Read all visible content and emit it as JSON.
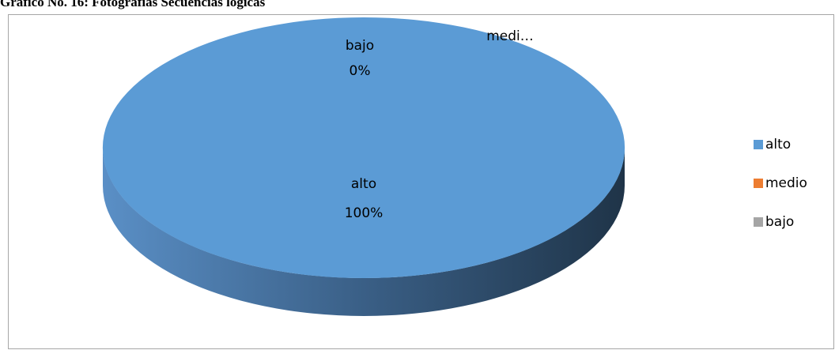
{
  "chart_data": {
    "type": "pie",
    "title": "Grafico No. 16: Fotografias Secuencias logicas",
    "categories": [
      "alto",
      "medio",
      "bajo"
    ],
    "values": [
      100,
      0,
      0
    ],
    "value_labels": [
      "100%",
      null,
      "0%"
    ],
    "data_label_names": [
      "alto",
      "medi…",
      "bajo"
    ],
    "colors": [
      "#5b9bd5",
      "#ed7d31",
      "#a5a5a5"
    ],
    "legend": "right"
  }
}
